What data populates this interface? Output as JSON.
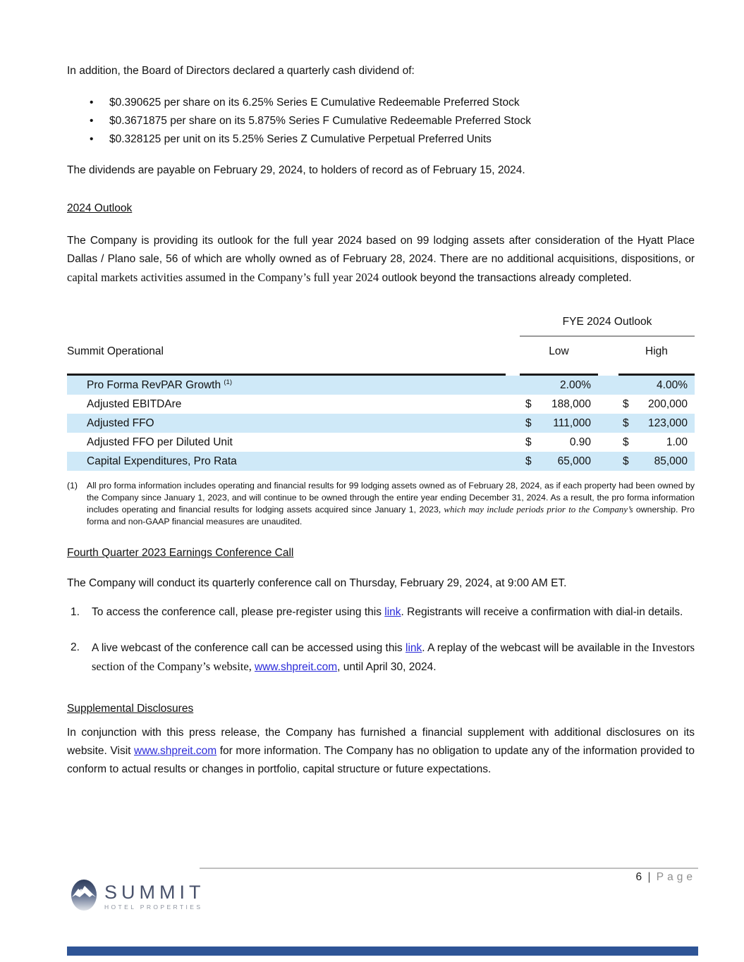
{
  "colors": {
    "table_shade": "#cfe9f8",
    "link": "#2b2bd9",
    "accent_bar": "#2e5496",
    "logo_navy": "#2f3d5c"
  },
  "intro": {
    "lead": "In addition, the Board of Directors declared a quarterly cash dividend of:",
    "bullet_char": "•",
    "bullets": [
      "$0.390625 per share on its 6.25% Series E Cumulative Redeemable Preferred Stock",
      "$0.3671875 per share on its 5.875% Series F Cumulative Redeemable Preferred Stock",
      "$0.328125 per unit on its 5.25% Series Z Cumulative Perpetual Preferred Units"
    ],
    "payable": "The dividends are payable on February 29, 2024, to holders of record as of February 15, 2024."
  },
  "outlook": {
    "heading": "2024 Outlook",
    "paragraph": [
      {
        "t": "The Company is providing its outlook for the full year 2024 based on 99 lodging assets after consideration of the Hyatt Place Dallas / Plano sale, 56 of which are wholly owned as of February 28, 2024. There are no additional acquisitions, dispositions, or "
      },
      {
        "t": "capital markets activities assumed in the Company’s full year 2024",
        "style": "serif"
      },
      {
        "t": " outlook beyond the transactions already completed."
      }
    ]
  },
  "table": {
    "group_header": "FYE 2024 Outlook",
    "row_header": "Summit Operational",
    "col_low": "Low",
    "col_high": "High",
    "rows": [
      {
        "label": "Pro Forma RevPAR Growth",
        "sup": "(1)",
        "low_cur": "",
        "low": "2.00%",
        "high_cur": "",
        "high": "4.00%",
        "shaded": true
      },
      {
        "label": "Adjusted EBITDAre",
        "sup": "",
        "low_cur": "$",
        "low": "188,000",
        "high_cur": "$",
        "high": "200,000",
        "shaded": false
      },
      {
        "label": "Adjusted FFO",
        "sup": "",
        "low_cur": "$",
        "low": "111,000",
        "high_cur": "$",
        "high": "123,000",
        "shaded": true
      },
      {
        "label": "Adjusted FFO per Diluted Unit",
        "sup": "",
        "low_cur": "$",
        "low": "0.90",
        "high_cur": "$",
        "high": "1.00",
        "shaded": false
      },
      {
        "label": "Capital Expenditures, Pro Rata",
        "sup": "",
        "low_cur": "$",
        "low": "65,000",
        "high_cur": "$",
        "high": "85,000",
        "shaded": true
      }
    ]
  },
  "footnote": {
    "marker": "(1)",
    "segments": [
      {
        "t": "All pro forma information includes operating and financial results for 99 lodging assets owned as of February 28, 2024, as if each property had been owned by the Company since January 1, 2023, and will continue to be owned through the entire year ending December 31, 2024. As a result, the pro forma information includes operating and financial results for lodging assets acquired since January 1, 2023"
      },
      {
        "t": ", which may include periods prior to the Company’s ",
        "style": "serif-italic"
      },
      {
        "t": "ownership. Pro forma and non-GAAP financial measures are unaudited."
      }
    ]
  },
  "call": {
    "heading": "Fourth Quarter 2023 Earnings Conference Call",
    "intro": "The Company will conduct its quarterly conference call on Thursday, February 29, 2024, at 9:00 AM ET.",
    "items": [
      {
        "num": "1.",
        "segments": [
          {
            "t": "To access the conference call, please pre-register using this "
          },
          {
            "t": "link",
            "style": "link"
          },
          {
            "t": ". Registrants will receive a confirmation with dial-in details."
          }
        ]
      },
      {
        "num": "2.",
        "segments": [
          {
            "t": "A live webcast of the conference call can be accessed using this "
          },
          {
            "t": "link",
            "style": "link"
          },
          {
            "t": ". A replay of the webcast will be available in "
          },
          {
            "t": "the Investors section of the Company’s website, ",
            "style": "serif"
          },
          {
            "t": "www.shpreit.com",
            "style": "link"
          },
          {
            "t": ", until April 30, 2024."
          }
        ]
      }
    ]
  },
  "supplemental": {
    "heading": "Supplemental Disclosures",
    "segments": [
      {
        "t": "In conjunction with this press release, the Company has furnished a financial supplement with additional disclosures on its website. Visit "
      },
      {
        "t": "www.shpreit.com",
        "style": "link"
      },
      {
        "t": " for more information. The Company has no obligation to update any of the information provided to conform to actual results or changes in portfolio, capital structure or future expectations."
      }
    ]
  },
  "footer": {
    "page_number": "6",
    "page_separator": "|",
    "page_word": "Page",
    "logo_name": "SUMMIT",
    "logo_sub": "HOTEL PROPERTIES"
  }
}
